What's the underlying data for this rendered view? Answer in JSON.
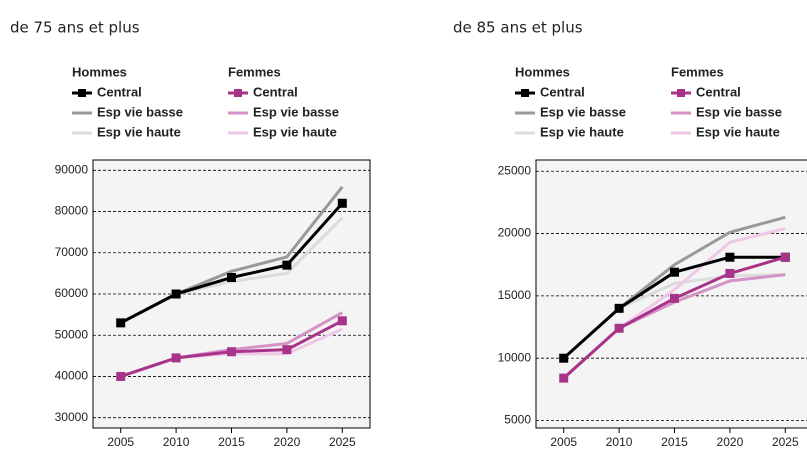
{
  "chart_data": [
    {
      "type": "line",
      "title": "de 75 ans et plus",
      "legend_titles": [
        "Hommes",
        "Femmes"
      ],
      "x": [
        2005,
        2010,
        2015,
        2020,
        2025
      ],
      "xlim": [
        2002.5,
        2027.5
      ],
      "xticks": [
        2005,
        2010,
        2015,
        2020,
        2025
      ],
      "ylim": [
        27500,
        92500
      ],
      "yticks": [
        30000,
        40000,
        50000,
        60000,
        70000,
        80000,
        90000
      ],
      "grid": true,
      "series": [
        {
          "name": "Central",
          "color": "#000000",
          "marker": "square",
          "values": [
            53000,
            60000,
            64000,
            67000,
            82000
          ]
        },
        {
          "name": "Esp vie basse",
          "color": "#999999",
          "values": [
            53000,
            60000,
            65500,
            69000,
            86000
          ]
        },
        {
          "name": "Esp vie haute",
          "color": "#dcdcdc",
          "values": [
            53000,
            60000,
            63000,
            65000,
            78500
          ]
        },
        {
          "name": "Central",
          "color": "#a8348a",
          "marker": "square",
          "values": [
            40000,
            44500,
            46000,
            46500,
            53500
          ]
        },
        {
          "name": "Esp vie basse",
          "color": "#d493c6",
          "values": [
            40000,
            44500,
            46500,
            48000,
            55500
          ]
        },
        {
          "name": "Esp vie haute",
          "color": "#efc8e8",
          "values": [
            40000,
            44500,
            45500,
            45500,
            51500
          ]
        }
      ]
    },
    {
      "type": "line",
      "title": "de 85 ans et plus",
      "legend_titles": [
        "Hommes",
        "Femmes"
      ],
      "x": [
        2005,
        2010,
        2015,
        2020,
        2025
      ],
      "xlim": [
        2002.5,
        2027.5
      ],
      "xticks": [
        2005,
        2010,
        2015,
        2020,
        2025
      ],
      "ylim": [
        4400,
        25900
      ],
      "yticks": [
        5000,
        10000,
        15000,
        20000,
        25000
      ],
      "grid": true,
      "series": [
        {
          "name": "Central",
          "color": "#000000",
          "marker": "square",
          "values": [
            10000,
            14000,
            16900,
            18100,
            18100
          ]
        },
        {
          "name": "Esp vie basse",
          "color": "#999999",
          "values": [
            10000,
            14000,
            17500,
            20100,
            21300
          ]
        },
        {
          "name": "Esp vie haute",
          "color": "#dcdcdc",
          "values": [
            10000,
            14000,
            16000,
            16600,
            16700
          ]
        },
        {
          "name": "Central",
          "color": "#a8348a",
          "marker": "square",
          "values": [
            8400,
            12400,
            14800,
            16800,
            18100
          ]
        },
        {
          "name": "Esp vie basse",
          "color": "#d493c6",
          "values": [
            8400,
            12400,
            14500,
            16200,
            16700
          ]
        },
        {
          "name": "Esp vie haute",
          "color": "#efc8e8",
          "values": [
            8400,
            12400,
            15500,
            19300,
            20400
          ]
        }
      ]
    }
  ]
}
